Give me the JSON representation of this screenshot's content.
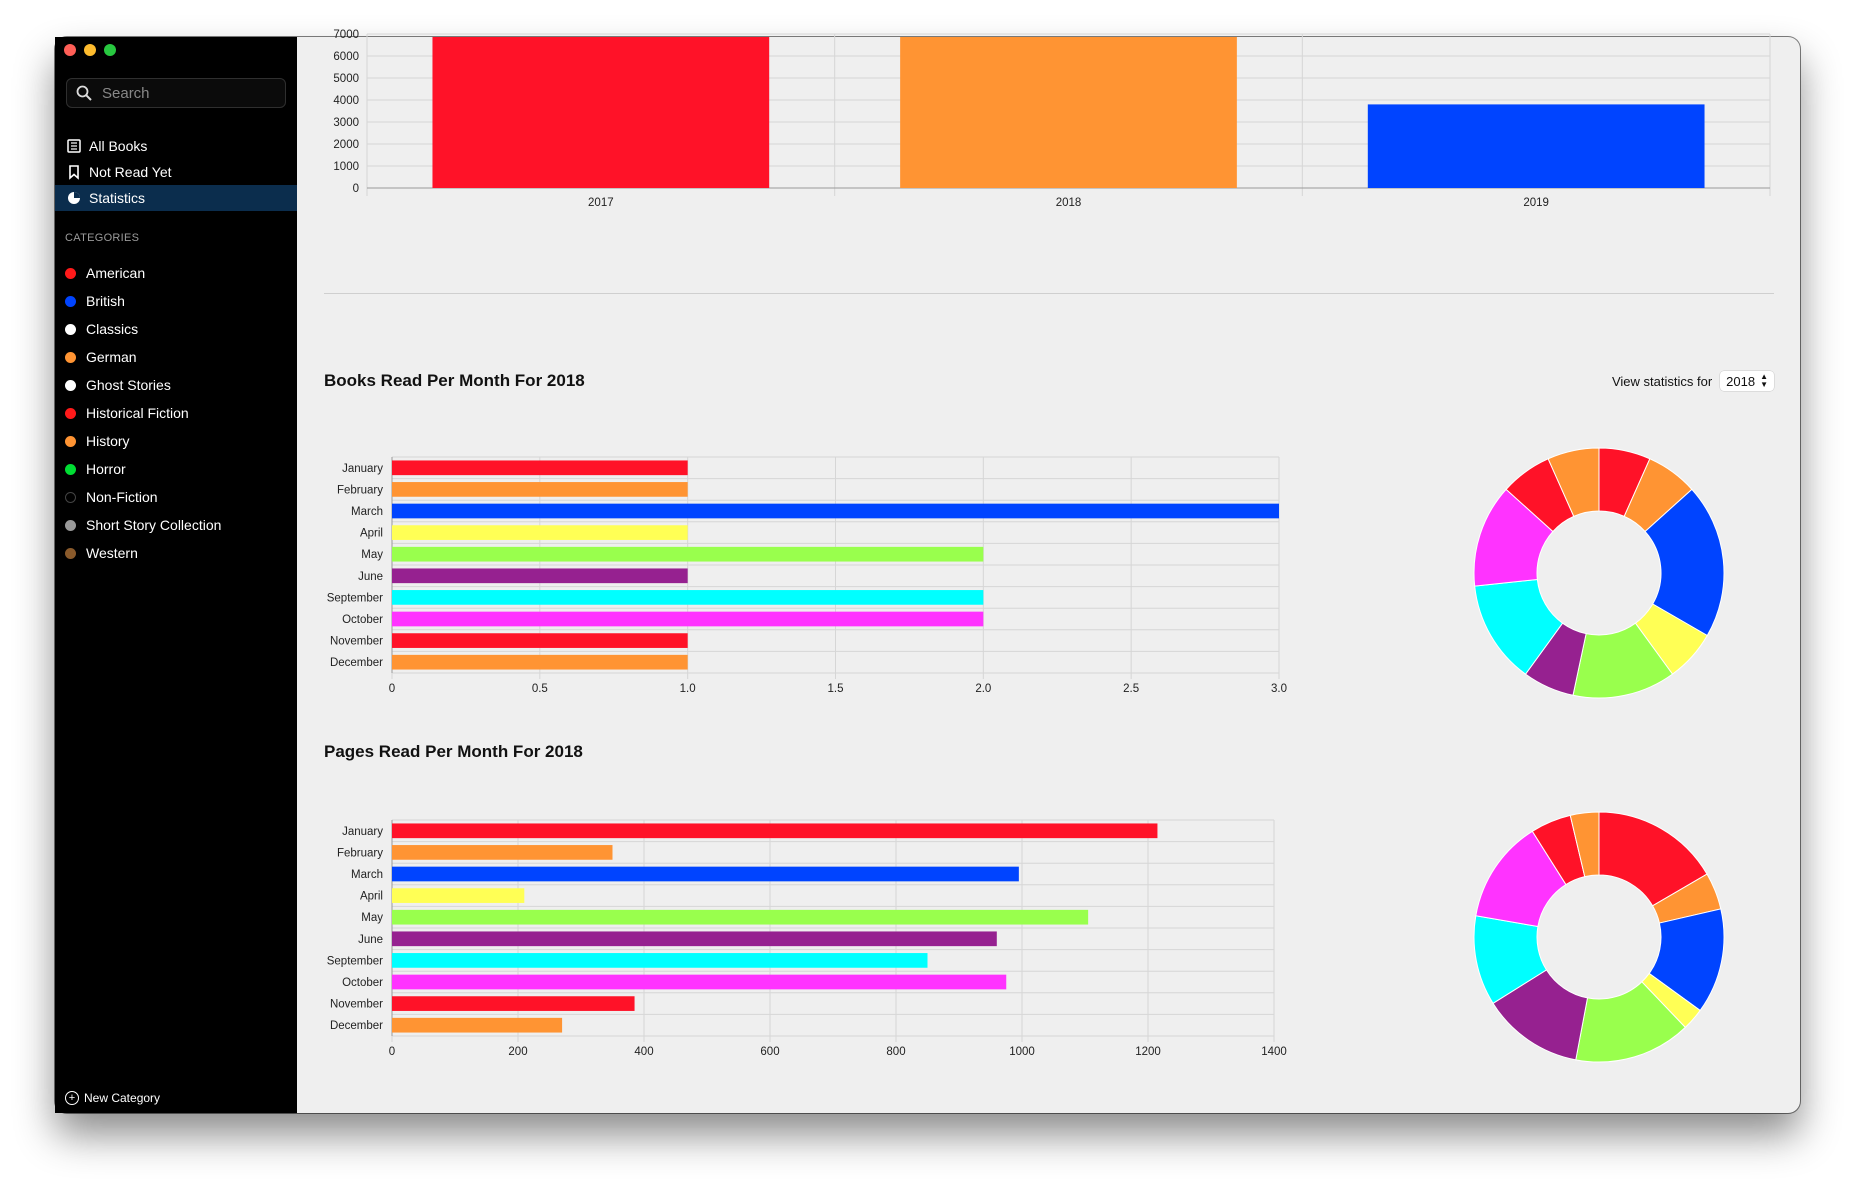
{
  "sidebar": {
    "search_placeholder": "Search",
    "nav": [
      {
        "label": "All Books",
        "icon": "books-icon"
      },
      {
        "label": "Not Read Yet",
        "icon": "bookmark-icon"
      },
      {
        "label": "Statistics",
        "icon": "pie-chart-icon",
        "active": true
      }
    ],
    "categories_heading": "CATEGORIES",
    "categories": [
      {
        "label": "American",
        "color": "#ff1a1a"
      },
      {
        "label": "British",
        "color": "#0044ff"
      },
      {
        "label": "Classics",
        "color": "#ffffff"
      },
      {
        "label": "German",
        "color": "#ff9433"
      },
      {
        "label": "Ghost Stories",
        "color": "#ffffff"
      },
      {
        "label": "Historical Fiction",
        "color": "#ff1a1a"
      },
      {
        "label": "History",
        "color": "#ff9433"
      },
      {
        "label": "Horror",
        "color": "#00dd33"
      },
      {
        "label": "Non-Fiction",
        "color": "#000000"
      },
      {
        "label": "Short Story Collection",
        "color": "#999999"
      },
      {
        "label": "Western",
        "color": "#8a5a2b"
      }
    ],
    "new_category": "New Category"
  },
  "controls": {
    "view_label": "View statistics for",
    "year": "2018"
  },
  "chart_data": [
    {
      "type": "bar",
      "categories": [
        "2017",
        "2018",
        "2019"
      ],
      "values": [
        7000,
        7000,
        3800
      ],
      "colors": [
        "#ff1228",
        "#ff9433",
        "#0044ff"
      ],
      "yticks": [
        "0",
        "1000",
        "2000",
        "3000",
        "4000",
        "5000",
        "6000",
        "7000"
      ],
      "ylim": [
        0,
        7000
      ]
    },
    {
      "type": "bar",
      "orientation": "horizontal",
      "title": "Books Read Per Month For 2018",
      "categories": [
        "January",
        "February",
        "March",
        "April",
        "May",
        "June",
        "September",
        "October",
        "November",
        "December"
      ],
      "values": [
        1,
        1,
        3,
        1,
        2,
        1,
        2,
        2,
        1,
        1
      ],
      "colors": [
        "#ff1228",
        "#ff9433",
        "#0044ff",
        "#ffff55",
        "#99ff4d",
        "#962190",
        "#00ffff",
        "#ff33ff",
        "#ff1228",
        "#ff9433"
      ],
      "xticks": [
        "0",
        "0.5",
        "1.0",
        "1.5",
        "2.0",
        "2.5",
        "3.0"
      ],
      "xlim": [
        0,
        3
      ]
    },
    {
      "type": "pie",
      "donut": true,
      "title": "Books Read Per Month For 2018",
      "values": [
        1,
        1,
        3,
        1,
        2,
        1,
        2,
        2,
        1,
        1
      ],
      "colors": [
        "#ff1228",
        "#ff9433",
        "#0044ff",
        "#ffff55",
        "#99ff4d",
        "#962190",
        "#00ffff",
        "#ff33ff",
        "#ff1228",
        "#ff9433"
      ]
    },
    {
      "type": "bar",
      "orientation": "horizontal",
      "title": "Pages Read Per Month For 2018",
      "categories": [
        "January",
        "February",
        "March",
        "April",
        "May",
        "June",
        "September",
        "October",
        "November",
        "December"
      ],
      "values": [
        1215,
        350,
        995,
        210,
        1105,
        960,
        850,
        975,
        385,
        270
      ],
      "colors": [
        "#ff1228",
        "#ff9433",
        "#0044ff",
        "#ffff55",
        "#99ff4d",
        "#962190",
        "#00ffff",
        "#ff33ff",
        "#ff1228",
        "#ff9433"
      ],
      "xticks": [
        "0",
        "200",
        "400",
        "600",
        "800",
        "1000",
        "1200",
        "1400"
      ],
      "xlim": [
        0,
        1400
      ]
    },
    {
      "type": "pie",
      "donut": true,
      "title": "Pages Read Per Month For 2018",
      "values": [
        1215,
        350,
        995,
        210,
        1105,
        960,
        850,
        975,
        385,
        270
      ],
      "colors": [
        "#ff1228",
        "#ff9433",
        "#0044ff",
        "#ffff55",
        "#99ff4d",
        "#962190",
        "#00ffff",
        "#ff33ff",
        "#ff1228",
        "#ff9433"
      ]
    }
  ]
}
